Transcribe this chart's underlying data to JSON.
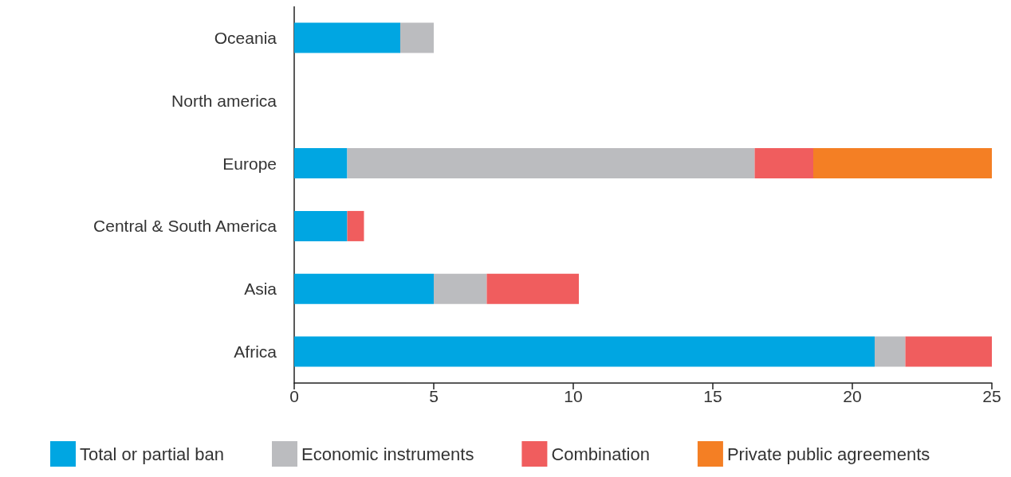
{
  "chart_data": {
    "type": "bar",
    "orientation": "horizontal",
    "stacked": true,
    "categories": [
      "Oceania",
      "North america",
      "Europe",
      "Central & South America",
      "Asia",
      "Africa"
    ],
    "series": [
      {
        "name": "Total or partial ban",
        "color": "#00a6e2",
        "values": [
          3.8,
          null,
          1.9,
          1.9,
          5,
          20.8
        ]
      },
      {
        "name": "Economic instruments",
        "color": "#bbbcbf",
        "values": [
          1.2,
          null,
          14.6,
          null,
          1.9,
          1.1
        ]
      },
      {
        "name": "Combination",
        "color": "#f05d5e",
        "values": [
          null,
          null,
          2.1,
          0.6,
          3.3,
          3.1
        ]
      },
      {
        "name": "Private public agreements",
        "color": "#f47f24",
        "values": [
          null,
          null,
          6.4,
          null,
          null,
          null
        ]
      }
    ],
    "xlim": [
      0,
      25
    ],
    "xticks": [
      0,
      5,
      10,
      15,
      20,
      25
    ],
    "grid": false,
    "legend": "bottom"
  }
}
